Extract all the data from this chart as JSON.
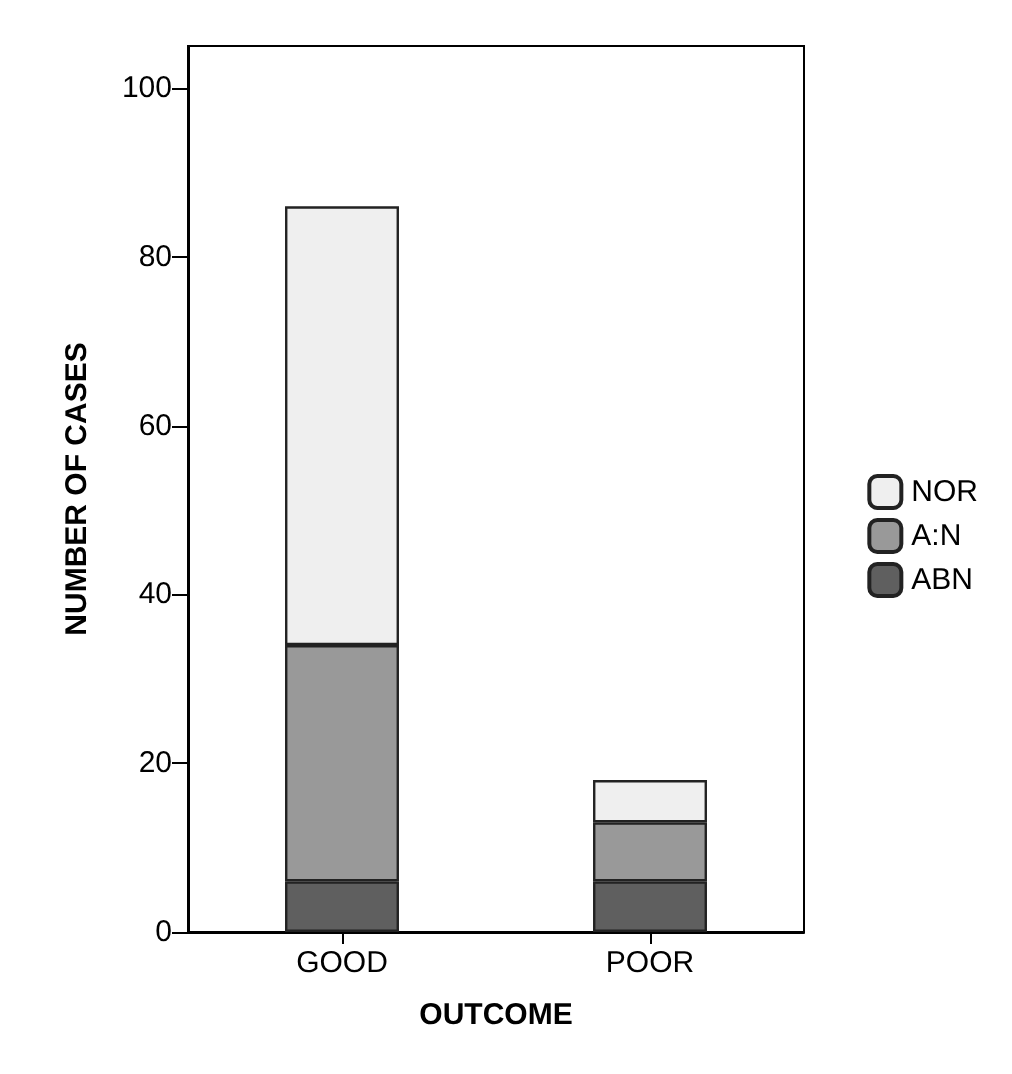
{
  "chart_data": {
    "type": "bar",
    "stacked": true,
    "xlabel": "OUTCOME",
    "ylabel": "NUMBER OF CASES",
    "categories": [
      "GOOD",
      "POOR"
    ],
    "series": [
      {
        "name": "ABN",
        "color": "#5f5f5f",
        "values": [
          6,
          6
        ]
      },
      {
        "name": "A:N",
        "color": "#999999",
        "values": [
          28,
          7
        ]
      },
      {
        "name": "NOR",
        "color": "#efefef",
        "values": [
          52,
          5
        ]
      }
    ],
    "ylim": [
      0,
      105
    ],
    "yticks": [
      0,
      20,
      40,
      60,
      80,
      100
    ],
    "grid": false,
    "legend": "right"
  }
}
